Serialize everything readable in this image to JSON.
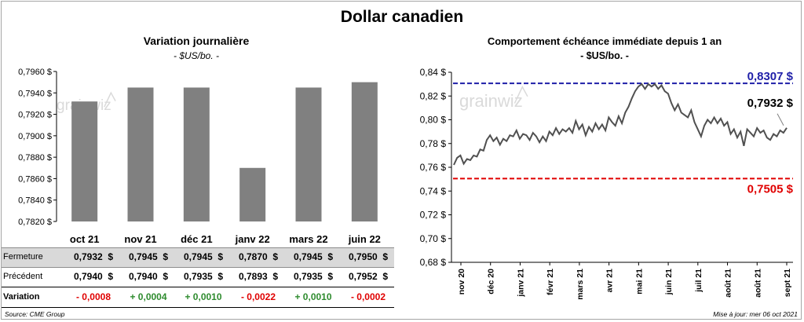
{
  "page": {
    "title": "Dollar canadien",
    "source": "Source: CME Group",
    "updated": "Mise à jour: mer 06 oct 2021"
  },
  "left": {
    "title": "Variation  journalière",
    "unit": "- $US/bo. -",
    "watermark": "grainwiz",
    "table": {
      "labels": {
        "close": "Fermeture",
        "prev": "Précédent",
        "var": "Variation"
      },
      "close": [
        "0,7932  $",
        "0,7945  $",
        "0,7945  $",
        "0,7870  $",
        "0,7945  $",
        "0,7950  $"
      ],
      "prev": [
        "0,7940  $",
        "0,7940  $",
        "0,7935  $",
        "0,7893  $",
        "0,7935  $",
        "0,7952  $"
      ],
      "variation": [
        "- 0,0008",
        "+ 0,0004",
        "+ 0,0010",
        "- 0,0022",
        "+ 0,0010",
        "- 0,0002"
      ]
    }
  },
  "right": {
    "title": "Comportement échéance immédiate depuis 1 an",
    "unit": "- $US/bo. -",
    "watermark": "grainwiz"
  },
  "colors": {
    "bar": "#808080",
    "line": "#505050",
    "high": "#1f1fa8",
    "low": "#e00000",
    "pos": "#2e8b2e",
    "neg": "#e00000"
  },
  "chart_data": [
    {
      "type": "bar",
      "title": "Variation  journalière",
      "subtitle": "- $US/bo. -",
      "categories": [
        "oct 21",
        "nov 21",
        "déc 21",
        "janv 22",
        "mars 22",
        "juin 22"
      ],
      "values": [
        0.7932,
        0.7945,
        0.7945,
        0.787,
        0.7945,
        0.795
      ],
      "ylim": [
        0.782,
        0.796
      ],
      "yticks": [
        "0,7820 $",
        "0,7840 $",
        "0,7860 $",
        "0,7880 $",
        "0,7900 $",
        "0,7920 $",
        "0,7940 $",
        "0,7960 $"
      ],
      "grid": false
    },
    {
      "type": "line",
      "title": "Comportement échéance immédiate depuis 1 an",
      "subtitle": "- $US/bo. -",
      "ylim": [
        0.68,
        0.84
      ],
      "yticks": [
        "0,68 $",
        "0,70 $",
        "0,72 $",
        "0,74 $",
        "0,76 $",
        "0,78 $",
        "0,80 $",
        "0,82 $",
        "0,84 $"
      ],
      "xticks": [
        "nov 20",
        "déc 20",
        "janv 21",
        "févr 21",
        "mars 21",
        "avr 21",
        "mai 21",
        "juin 21",
        "juil 21",
        "août 21",
        "août 21",
        "sept 21"
      ],
      "grid": false,
      "series": [
        {
          "values": [
            0.762,
            0.768,
            0.77,
            0.763,
            0.767,
            0.766,
            0.77,
            0.769,
            0.775,
            0.774,
            0.783,
            0.787,
            0.782,
            0.785,
            0.779,
            0.784,
            0.782,
            0.787,
            0.786,
            0.791,
            0.784,
            0.788,
            0.787,
            0.783,
            0.789,
            0.786,
            0.781,
            0.786,
            0.782,
            0.79,
            0.787,
            0.793,
            0.788,
            0.792,
            0.79,
            0.793,
            0.789,
            0.799,
            0.792,
            0.796,
            0.787,
            0.794,
            0.79,
            0.797,
            0.792,
            0.796,
            0.791,
            0.802,
            0.798,
            0.795,
            0.803,
            0.797,
            0.806,
            0.811,
            0.818,
            0.824,
            0.828,
            0.83,
            0.826,
            0.83,
            0.828,
            0.83,
            0.826,
            0.829,
            0.824,
            0.822,
            0.814,
            0.808,
            0.813,
            0.806,
            0.804,
            0.802,
            0.808,
            0.798,
            0.792,
            0.786,
            0.795,
            0.8,
            0.797,
            0.802,
            0.797,
            0.801,
            0.795,
            0.798,
            0.788,
            0.792,
            0.785,
            0.79,
            0.778,
            0.792,
            0.789,
            0.786,
            0.793,
            0.789,
            0.791,
            0.785,
            0.783,
            0.788,
            0.786,
            0.791,
            0.789,
            0.7932
          ]
        }
      ],
      "reference_lines": [
        {
          "label": "0,8307  $",
          "value": 0.8307,
          "color": "#1f1fa8"
        },
        {
          "label": "0,7505  $",
          "value": 0.7505,
          "color": "#e00000"
        }
      ],
      "last_label": "0,7932  $"
    }
  ]
}
